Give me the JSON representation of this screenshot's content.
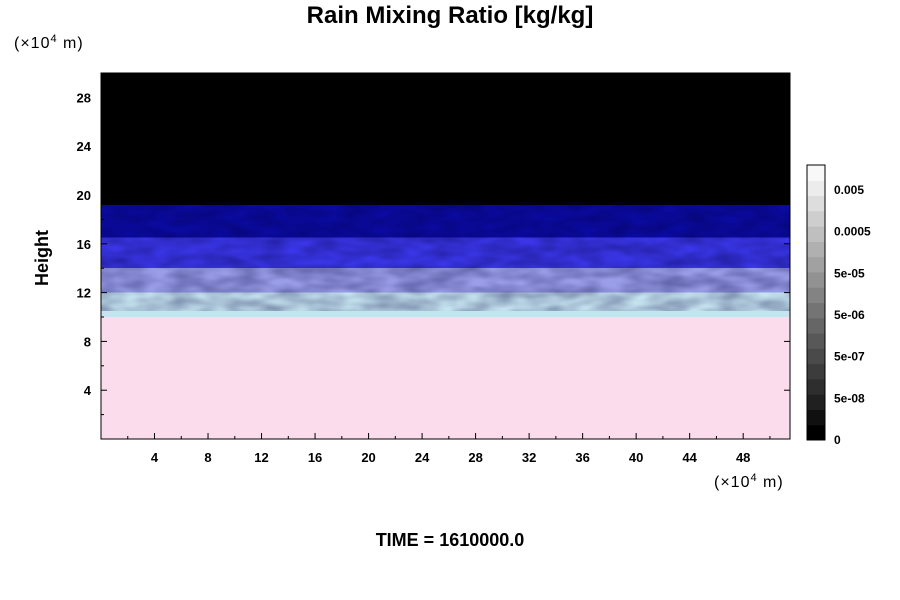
{
  "chart_data": {
    "type": "heatmap",
    "title": "Rain Mixing Ratio [kg/kg]",
    "ylabel": "Height",
    "x_unit": {
      "prefix": "(×10",
      "exp": "4",
      "suffix": " m)"
    },
    "y_unit": {
      "prefix": "(×10",
      "exp": "4",
      "suffix": " m)"
    },
    "xlim": [
      0,
      51.5
    ],
    "ylim": [
      0,
      30
    ],
    "x_ticks": [
      4,
      8,
      12,
      16,
      20,
      24,
      28,
      32,
      36,
      40,
      44,
      48
    ],
    "y_ticks": [
      4,
      8,
      12,
      16,
      20,
      24,
      28
    ],
    "footer": "TIME = 1610000.0",
    "bands": [
      {
        "y0": 0,
        "y1": 10,
        "color": "#fbdcec"
      },
      {
        "y0": 10,
        "y1": 12,
        "color": "#c6e4f0"
      },
      {
        "y0": 12,
        "y1": 14,
        "color": "#9a9ee8"
      },
      {
        "y0": 14,
        "y1": 16.5,
        "color": "#3a36e8"
      },
      {
        "y0": 16.5,
        "y1": 19.2,
        "color": "#0a0aa0"
      },
      {
        "y0": 19.2,
        "y1": 30,
        "color": "#000000"
      }
    ],
    "colorbar": {
      "labels": [
        "0.005",
        "0.0005",
        "5e-05",
        "5e-06",
        "5e-07",
        "5e-08",
        "0"
      ],
      "colors": [
        "#000000",
        "#101010",
        "#202020",
        "#2e2e2e",
        "#3c3c3c",
        "#4a4a4a",
        "#585858",
        "#666666",
        "#747474",
        "#838383",
        "#929292",
        "#a1a1a1",
        "#b0b0b0",
        "#bfbfbf",
        "#cecece",
        "#dddddd",
        "#ececec",
        "#f8f8f8"
      ]
    }
  }
}
